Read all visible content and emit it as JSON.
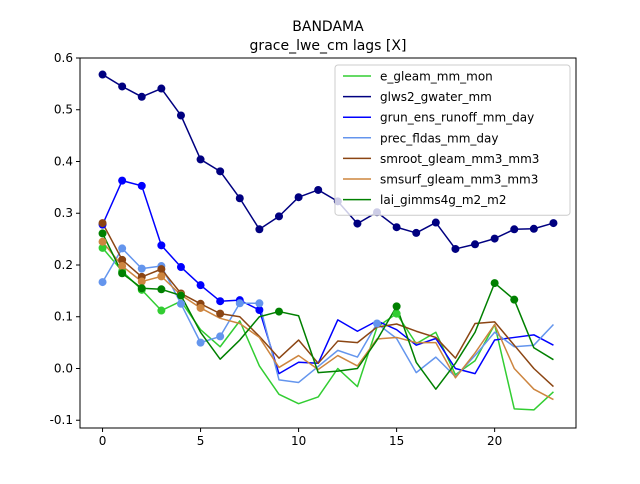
{
  "chart_data": {
    "type": "line",
    "title": "BANDAMA",
    "subtitle": "grace_lwe_cm lags [X]",
    "xlabel": "",
    "ylabel": "",
    "xlim": [
      -1.15,
      24.15
    ],
    "ylim": [
      -0.115,
      0.6
    ],
    "xticks": [
      0,
      5,
      10,
      15,
      20
    ],
    "yticks": [
      -0.1,
      0.0,
      0.1,
      0.2,
      0.3,
      0.4,
      0.5,
      0.6
    ],
    "ytick_labels": [
      "-0.1",
      "0.0",
      "0.1",
      "0.2",
      "0.3",
      "0.4",
      "0.5",
      "0.6"
    ],
    "legend_position": "top-right",
    "x": [
      0,
      1,
      2,
      3,
      4,
      5,
      6,
      7,
      8,
      9,
      10,
      11,
      12,
      13,
      14,
      15,
      16,
      17,
      18,
      19,
      20,
      21,
      22,
      23
    ],
    "series": [
      {
        "name": "e_gleam_mm_mon",
        "color": "#32cd32",
        "values": [
          0.233,
          0.188,
          0.152,
          0.112,
          0.13,
          0.075,
          0.042,
          0.092,
          0.005,
          -0.05,
          -0.068,
          -0.055,
          0.0,
          -0.035,
          0.08,
          0.106,
          0.048,
          0.07,
          -0.012,
          0.015,
          0.085,
          -0.078,
          -0.08,
          -0.045
        ],
        "markers": [
          0,
          1,
          2,
          3,
          15
        ]
      },
      {
        "name": "glws2_gwater_mm",
        "color": "#000080",
        "values": [
          0.568,
          0.545,
          0.525,
          0.541,
          0.489,
          0.404,
          0.381,
          0.329,
          0.269,
          0.294,
          0.331,
          0.345,
          0.323,
          0.28,
          0.302,
          0.273,
          0.262,
          0.282,
          0.231,
          0.24,
          0.251,
          0.269,
          0.27,
          0.281
        ],
        "markers": [
          0,
          1,
          2,
          3,
          4,
          5,
          6,
          7,
          8,
          9,
          10,
          11,
          12,
          13,
          14,
          15,
          16,
          17,
          18,
          19,
          20,
          21,
          22,
          23
        ]
      },
      {
        "name": "grun_ens_runoff_mm_day",
        "color": "#0000ff",
        "values": [
          0.278,
          0.363,
          0.353,
          0.238,
          0.196,
          0.161,
          0.13,
          0.132,
          0.113,
          -0.01,
          0.012,
          0.01,
          0.094,
          0.072,
          0.092,
          0.075,
          0.045,
          0.058,
          0.0,
          -0.01,
          0.055,
          0.06,
          0.065,
          0.045
        ],
        "markers": [
          0,
          1,
          2,
          3,
          4,
          5,
          6,
          7,
          8
        ]
      },
      {
        "name": "prec_fldas_mm_day",
        "color": "#6495ed",
        "values": [
          0.167,
          0.232,
          0.193,
          0.198,
          0.125,
          0.05,
          0.062,
          0.126,
          0.126,
          -0.022,
          -0.027,
          0.004,
          0.035,
          0.022,
          0.087,
          0.058,
          -0.008,
          0.022,
          -0.016,
          0.025,
          0.07,
          0.042,
          0.045,
          0.085
        ],
        "markers": [
          0,
          1,
          2,
          3,
          4,
          5,
          6,
          7,
          8,
          14
        ]
      },
      {
        "name": "smroot_gleam_mm3_mm3",
        "color": "#8b4513",
        "values": [
          0.281,
          0.21,
          0.177,
          0.192,
          0.145,
          0.125,
          0.106,
          0.1,
          0.062,
          0.02,
          0.055,
          0.01,
          0.053,
          0.05,
          0.08,
          0.086,
          0.072,
          0.06,
          0.02,
          0.087,
          0.09,
          0.045,
          0.0,
          -0.035
        ],
        "markers": [
          0,
          1,
          2,
          3,
          4,
          5,
          6
        ]
      },
      {
        "name": "smsurf_gleam_mm3_mm3",
        "color": "#cd853f",
        "values": [
          0.245,
          0.198,
          0.168,
          0.178,
          0.142,
          0.117,
          0.097,
          0.087,
          0.06,
          0.002,
          0.025,
          -0.002,
          0.025,
          0.005,
          0.057,
          0.06,
          0.05,
          0.05,
          -0.018,
          0.03,
          0.085,
          0.0,
          -0.04,
          -0.06
        ],
        "markers": [
          0,
          1,
          2,
          3,
          4,
          5
        ]
      },
      {
        "name": "lai_gimms4g_m2_m2",
        "color": "#008000",
        "values": [
          0.261,
          0.184,
          0.155,
          0.153,
          0.141,
          0.07,
          0.018,
          0.055,
          0.1,
          0.11,
          0.102,
          -0.008,
          -0.005,
          0.0,
          0.055,
          0.12,
          0.012,
          -0.04,
          0.01,
          0.07,
          0.165,
          0.133,
          0.04,
          0.017
        ],
        "markers": [
          0,
          1,
          2,
          3,
          4,
          9,
          15,
          20,
          21
        ]
      }
    ]
  }
}
